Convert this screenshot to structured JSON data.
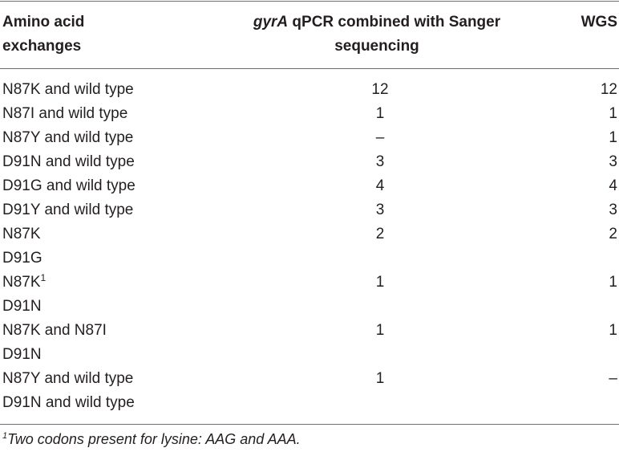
{
  "table": {
    "headers": {
      "col1_line1": "Amino acid",
      "col1_line2": "exchanges",
      "col2_gene": "gyrA",
      "col2_rest_line1": " qPCR combined with Sanger",
      "col2_line2": "sequencing",
      "col3": "WGS"
    },
    "rows": [
      {
        "exchange": "N87K and wild type",
        "sup": "",
        "qpcr": "12",
        "wgs": "12"
      },
      {
        "exchange": "N87I and wild type",
        "sup": "",
        "qpcr": "1",
        "wgs": "1"
      },
      {
        "exchange": "N87Y and wild type",
        "sup": "",
        "qpcr": "–",
        "wgs": "1"
      },
      {
        "exchange": "D91N and wild type",
        "sup": "",
        "qpcr": "3",
        "wgs": "3"
      },
      {
        "exchange": "D91G and wild type",
        "sup": "",
        "qpcr": "4",
        "wgs": "4"
      },
      {
        "exchange": "D91Y and wild type",
        "sup": "",
        "qpcr": "3",
        "wgs": "3"
      },
      {
        "exchange": "N87K",
        "sup": "",
        "qpcr": "2",
        "wgs": "2"
      },
      {
        "exchange": "D91G",
        "sup": "",
        "qpcr": "",
        "wgs": ""
      },
      {
        "exchange": "N87K",
        "sup": "1",
        "qpcr": "1",
        "wgs": "1"
      },
      {
        "exchange": "D91N",
        "sup": "",
        "qpcr": "",
        "wgs": ""
      },
      {
        "exchange": "N87K and N87I",
        "sup": "",
        "qpcr": "1",
        "wgs": "1"
      },
      {
        "exchange": "D91N",
        "sup": "",
        "qpcr": "",
        "wgs": ""
      },
      {
        "exchange": "N87Y and wild type",
        "sup": "",
        "qpcr": "1",
        "wgs": "–"
      },
      {
        "exchange": "D91N and wild type",
        "sup": "",
        "qpcr": "",
        "wgs": ""
      }
    ],
    "footnote": {
      "marker": "1",
      "text": "Two codons present for lysine: AAG and AAA."
    }
  }
}
